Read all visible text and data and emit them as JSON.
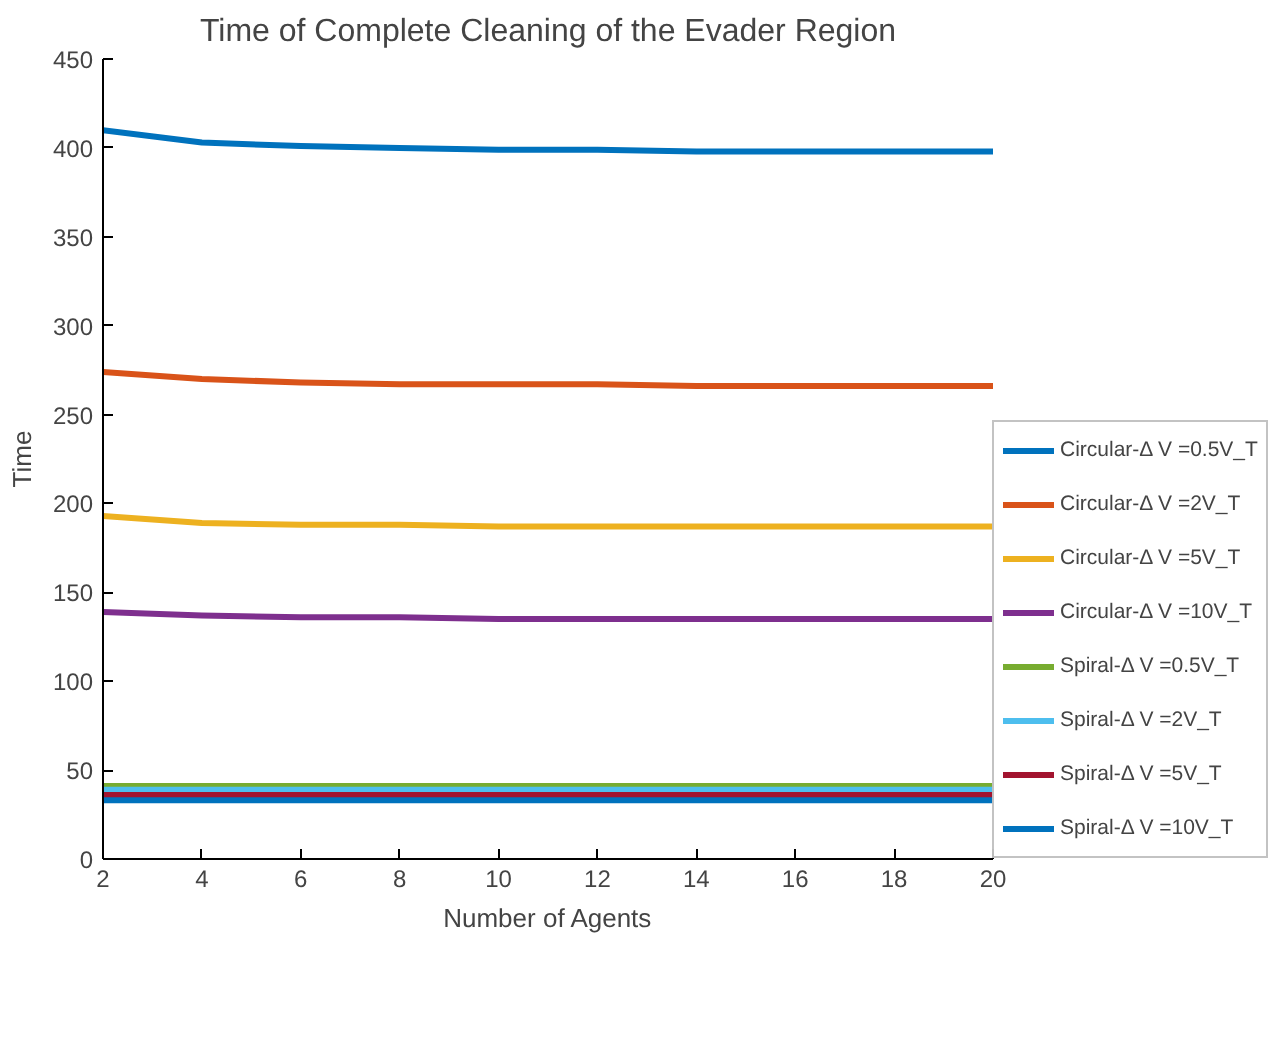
{
  "chart_data": {
    "type": "line",
    "title": "Time of Complete Cleaning of the Evader Region",
    "xlabel": "Number of Agents",
    "ylabel": "Time",
    "x": [
      2,
      4,
      6,
      8,
      10,
      12,
      14,
      16,
      18,
      20
    ],
    "series": [
      {
        "name": "Circular-Δ V =0.5V_T",
        "color": "#0072bd",
        "values": [
          410,
          403,
          401,
          400,
          399,
          399,
          398,
          398,
          398,
          398
        ]
      },
      {
        "name": "Circular-Δ V =2V_T",
        "color": "#d95319",
        "values": [
          274,
          270,
          268,
          267,
          267,
          267,
          266,
          266,
          266,
          266
        ]
      },
      {
        "name": "Circular-Δ V =5V_T",
        "color": "#edb120",
        "values": [
          193,
          189,
          188,
          188,
          187,
          187,
          187,
          187,
          187,
          187
        ]
      },
      {
        "name": "Circular-Δ V =10V_T",
        "color": "#7e2f8e",
        "values": [
          139,
          137,
          136,
          136,
          135,
          135,
          135,
          135,
          135,
          135
        ]
      },
      {
        "name": "Spiral-Δ V =0.5V_T",
        "color": "#77ac30",
        "values": [
          41,
          41,
          41,
          41,
          41,
          41,
          41,
          41,
          41,
          41
        ]
      },
      {
        "name": "Spiral-Δ V =2V_T",
        "color": "#4dbeee",
        "values": [
          39,
          39,
          39,
          39,
          39,
          39,
          39,
          39,
          39,
          39
        ]
      },
      {
        "name": "Spiral-Δ V =5V_T",
        "color": "#a2142f",
        "values": [
          36,
          36,
          36,
          36,
          36,
          36,
          36,
          36,
          36,
          36
        ]
      },
      {
        "name": "Spiral-Δ V =10V_T",
        "color": "#0072bd",
        "values": [
          33,
          33,
          33,
          33,
          33,
          33,
          33,
          33,
          33,
          33
        ]
      }
    ],
    "xlim": [
      2,
      20
    ],
    "xticks": [
      2,
      4,
      6,
      8,
      10,
      12,
      14,
      16,
      18,
      20
    ],
    "ylim": [
      0,
      450
    ],
    "yticks": [
      0,
      50,
      100,
      150,
      200,
      250,
      300,
      350,
      400,
      450
    ],
    "grid": false,
    "legend": "right",
    "marker": "none",
    "line_style": "solid"
  }
}
